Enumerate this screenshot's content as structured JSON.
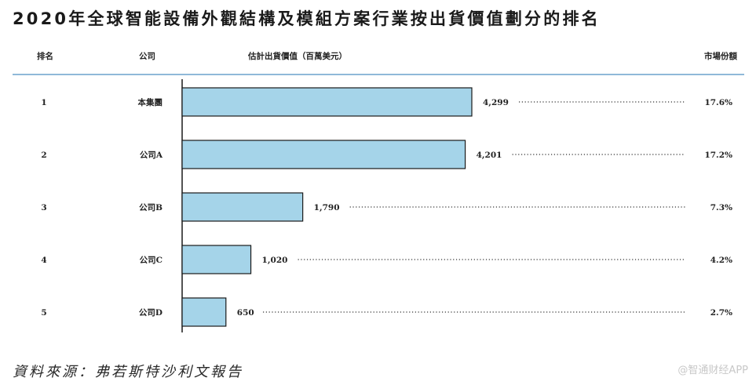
{
  "title": "2020年全球智能設備外觀結構及模組方案行業按出貨價值劃分的排名",
  "header": {
    "rank": "排名",
    "company": "公司",
    "value": "估計出貨價值（百萬美元）",
    "share": "市場份額"
  },
  "source": "資料來源：弗若斯特沙利文報告",
  "watermark": "@智通财经APP",
  "colors": {
    "bar_fill": "#a5d4e9",
    "bar_stroke": "#1a1a1a",
    "header_rule": "#8fb9d9"
  },
  "chart_data": {
    "type": "bar",
    "orientation": "horizontal",
    "ranks": [
      "1",
      "2",
      "3",
      "4",
      "5"
    ],
    "categories": [
      "本集團",
      "公司A",
      "公司B",
      "公司C",
      "公司D"
    ],
    "values": [
      4299,
      4201,
      1790,
      1020,
      650
    ],
    "value_labels": [
      "4,299",
      "4,201",
      "1,790",
      "1,020",
      "650"
    ],
    "shares": [
      "17.6%",
      "17.2%",
      "7.3%",
      "4.2%",
      "2.7%"
    ],
    "xlabel": "估計出貨價值（百萬美元）",
    "ylabel": "",
    "xlim": [
      0,
      4299
    ]
  }
}
